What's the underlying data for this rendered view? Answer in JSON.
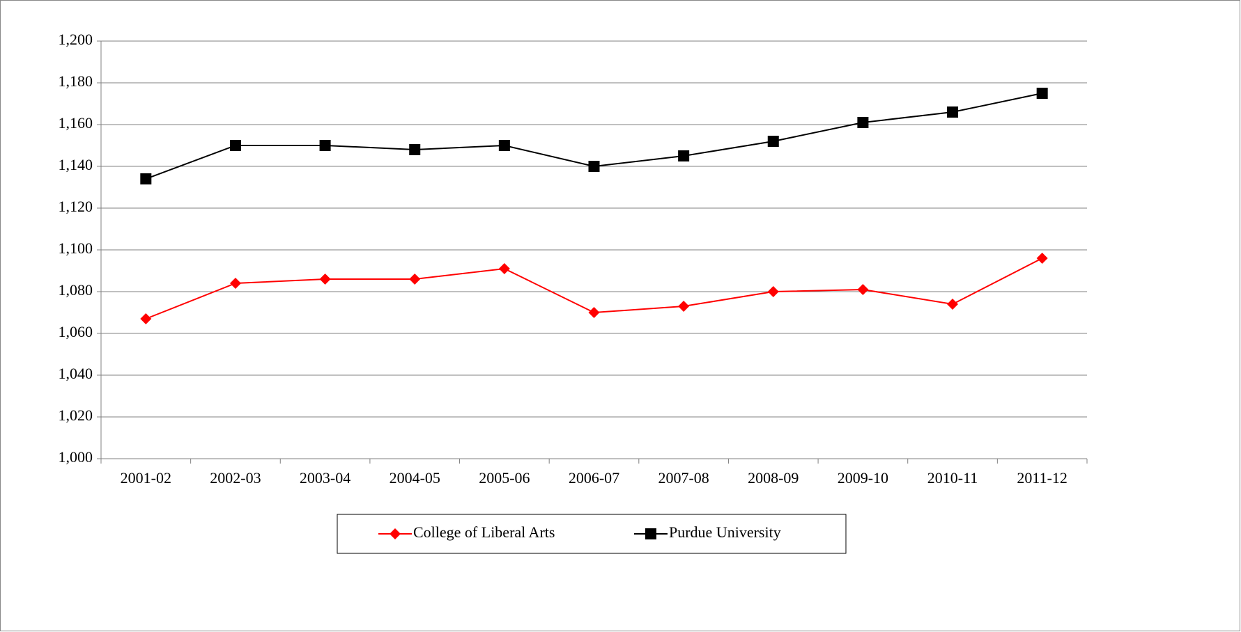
{
  "chart_data": {
    "type": "line",
    "categories": [
      "2001-02",
      "2002-03",
      "2003-04",
      "2004-05",
      "2005-06",
      "2006-07",
      "2007-08",
      "2008-09",
      "2009-10",
      "2010-11",
      "2011-12"
    ],
    "series": [
      {
        "name": "College of Liberal Arts",
        "color": "#ff0000",
        "marker": "diamond",
        "values": [
          1067,
          1084,
          1086,
          1086,
          1091,
          1070,
          1073,
          1080,
          1081,
          1074,
          1096
        ]
      },
      {
        "name": "Purdue University",
        "color": "#000000",
        "marker": "square",
        "values": [
          1134,
          1150,
          1150,
          1148,
          1150,
          1140,
          1145,
          1152,
          1161,
          1166,
          1175
        ]
      }
    ],
    "ylim": [
      1000,
      1200
    ],
    "yticks": [
      {
        "value": 1000,
        "label": "1,000"
      },
      {
        "value": 1020,
        "label": "1,020"
      },
      {
        "value": 1040,
        "label": "1,040"
      },
      {
        "value": 1060,
        "label": "1,060"
      },
      {
        "value": 1080,
        "label": "1,080"
      },
      {
        "value": 1100,
        "label": "1,100"
      },
      {
        "value": 1120,
        "label": "1,120"
      },
      {
        "value": 1140,
        "label": "1,140"
      },
      {
        "value": 1160,
        "label": "1,160"
      },
      {
        "value": 1180,
        "label": "1,180"
      },
      {
        "value": 1200,
        "label": "1,200"
      }
    ],
    "grid": true,
    "legend": "bottom"
  }
}
